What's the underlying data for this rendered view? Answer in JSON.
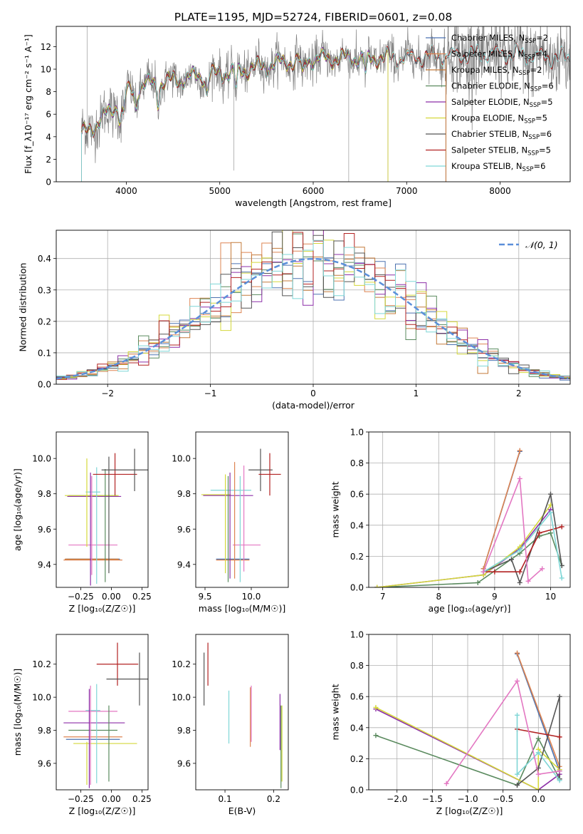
{
  "figure_title": "PLATE=1195, MJD=52724, FIBERID=0601, z=0.08",
  "colors": [
    "#1f77b4",
    "#ff7f0e",
    "#2ca02c",
    "#d62728",
    "#9467bd",
    "#8c564b",
    "#e377c2",
    "#7f7f7f",
    "#bcbd22",
    "#17becf"
  ],
  "chart_data": [
    {
      "id": "spectrum",
      "type": "line",
      "xlabel": "wavelength [Angstrom, rest frame]",
      "ylabel": "Flux [f_λ10⁻¹⁷ erg cm⁻² s⁻¹ A⁻¹]",
      "xlim": [
        3250,
        8750
      ],
      "ylim": [
        0,
        13.8
      ],
      "xticks": [
        4000,
        5000,
        6000,
        7000,
        8000
      ],
      "yticks": [
        0,
        2,
        4,
        6,
        8,
        10,
        12
      ],
      "legend": "upper right",
      "data_color": "#808080",
      "series": [
        {
          "name": "Chabrier MILES, N_SSP=2",
          "label": "Chabrier MILES, N",
          "sub": "SSP",
          "suffix": "=2",
          "color": "#4c72b0",
          "x_end": 7420
        },
        {
          "name": "Salpeter MILES, N_SSP=4",
          "label": "Salpeter MILES, N",
          "sub": "SSP",
          "suffix": "=4",
          "color": "#dd8452",
          "x_end": 7420
        },
        {
          "name": "Kroupa MILES, N_SSP=2",
          "label": "Kroupa MILES, N",
          "sub": "SSP",
          "suffix": "=2",
          "color": "#c47a3a",
          "x_end": 7420
        },
        {
          "name": "Chabrier ELODIE, N_SSP=6",
          "label": "Chabrier ELODIE, N",
          "sub": "SSP",
          "suffix": "=6",
          "color": "#5a8a5e",
          "x_end": 6800
        },
        {
          "name": "Salpeter ELODIE, N_SSP=5",
          "label": "Salpeter ELODIE, N",
          "sub": "SSP",
          "suffix": "=5",
          "color": "#8c2fa8",
          "x_end": 6800
        },
        {
          "name": "Kroupa ELODIE, N_SSP=5",
          "label": "Kroupa ELODIE, N",
          "sub": "SSP",
          "suffix": "=5",
          "color": "#d4d83a",
          "x_end": 6800
        },
        {
          "name": "Chabrier STELIB, N_SSP=6",
          "label": "Chabrier STELIB, N",
          "sub": "SSP",
          "suffix": "=6",
          "color": "#555555",
          "x_end": 8750
        },
        {
          "name": "Salpeter STELIB, N_SSP=5",
          "label": "Salpeter STELIB, N",
          "sub": "SSP",
          "suffix": "=5",
          "color": "#b22222",
          "x_end": 8750
        },
        {
          "name": "Kroupa STELIB, N_SSP=6",
          "label": "Kroupa STELIB, N",
          "sub": "SSP",
          "suffix": "=6",
          "color": "#7fd6d6",
          "x_end": 8750
        }
      ],
      "continuum": {
        "x": [
          3500,
          3700,
          3900,
          4000,
          4200,
          4500,
          4800,
          5000,
          5300,
          5600,
          6000,
          6400,
          7000,
          7400,
          8000,
          8600
        ],
        "y": [
          4.0,
          5.3,
          6.8,
          7.9,
          8.6,
          9.0,
          9.4,
          9.6,
          10.0,
          10.5,
          10.9,
          11.0,
          11.0,
          11.2,
          11.4,
          11.0
        ]
      }
    },
    {
      "id": "residuals",
      "type": "histogram",
      "xlabel": "(data-model)/error",
      "ylabel": "Normed distribution",
      "xlim": [
        -2.5,
        2.5
      ],
      "ylim": [
        0,
        0.49
      ],
      "xticks": [
        -2,
        -1,
        0,
        1,
        2
      ],
      "yticks": [
        0.0,
        0.1,
        0.2,
        0.3,
        0.4
      ],
      "grid": true,
      "legend": "upper right",
      "gaussian_label": "𝒩(0, 1)",
      "gaussian_color": "#5b8fd9",
      "bin_width": 0.1
    },
    {
      "id": "age_vs_Z",
      "type": "errorbar",
      "xlabel": "Z [log₁₀(Z/Z☉)]",
      "ylabel": "age  [log₁₀(age/yr)]",
      "xlim": [
        -0.45,
        0.3
      ],
      "ylim": [
        9.27,
        10.15
      ],
      "xticks": [
        -0.25,
        0.0,
        0.25
      ],
      "yticks": [
        9.4,
        9.6,
        9.8,
        10.0
      ],
      "points": [
        {
          "x": -0.15,
          "xerr": 0.22,
          "y": 9.43,
          "yerr": 0.0,
          "color": "#4c72b0"
        },
        {
          "x": -0.15,
          "xerr": 0.24,
          "y": 9.425,
          "yerr": 0.0,
          "color": "#dd8452"
        },
        {
          "x": -0.16,
          "xerr": 0.22,
          "y": 9.43,
          "yerr": 0.0,
          "color": "#c47a3a"
        },
        {
          "x": -0.15,
          "xerr": 0.2,
          "y": 9.79,
          "yerr": 0.0,
          "color": "#5a8a5e"
        },
        {
          "x": -0.14,
          "xerr": 0.22,
          "y": 9.785,
          "yerr": 0.0,
          "color": "#8c2fa8"
        },
        {
          "x": -0.16,
          "xerr": 0.22,
          "y": 9.79,
          "yerr": 0.0,
          "color": "#d4d83a"
        },
        {
          "x": -0.15,
          "xerr": 0.06,
          "y": 9.81,
          "yerr": 0.0,
          "color": "#7fd6d6"
        },
        {
          "x": -0.15,
          "xerr": 0.2,
          "y": 9.51,
          "yerr": 0.0,
          "color": "#e377c2"
        },
        {
          "x": -0.2,
          "xerr": 0.0,
          "y": 9.75,
          "yerr": 0.25,
          "color": "#d4d83a"
        },
        {
          "x": -0.17,
          "xerr": 0.0,
          "y": 9.6,
          "yerr": 0.32,
          "color": "#8c2fa8"
        },
        {
          "x": -0.16,
          "xerr": 0.0,
          "y": 9.62,
          "yerr": 0.28,
          "color": "#e377c2"
        },
        {
          "x": -0.12,
          "xerr": 0.0,
          "y": 9.62,
          "yerr": 0.33,
          "color": "#7fd6d6"
        },
        {
          "x": -0.05,
          "xerr": 0.0,
          "y": 9.62,
          "yerr": 0.32,
          "color": "#5a8a5e"
        },
        {
          "x": -0.02,
          "xerr": 0.0,
          "y": 9.68,
          "yerr": 0.33,
          "color": "#555555"
        },
        {
          "x": 0.03,
          "xerr": 0.18,
          "y": 9.91,
          "yerr": 0.12,
          "color": "#b22222"
        },
        {
          "x": 0.19,
          "xerr": 0.27,
          "y": 9.935,
          "yerr": 0.12,
          "color": "#555555"
        }
      ]
    },
    {
      "id": "age_vs_mass",
      "type": "errorbar",
      "xlabel": "mass [log₁₀(M/M☉)]",
      "ylabel": "",
      "xlim": [
        9.4,
        10.4
      ],
      "ylim": [
        9.27,
        10.15
      ],
      "xticks": [
        9.5,
        10.0
      ],
      "yticks": [
        9.4,
        9.6,
        9.8,
        10.0
      ],
      "points": [
        {
          "x": 9.8,
          "xerr": 0.18,
          "y": 9.43,
          "yerr": 0.0,
          "color": "#4c72b0"
        },
        {
          "x": 9.8,
          "xerr": 0.18,
          "y": 9.425,
          "yerr": 0.0,
          "color": "#dd8452"
        },
        {
          "x": 9.62,
          "xerr": 0.16,
          "y": 9.795,
          "yerr": 0.0,
          "color": "#d4d83a"
        },
        {
          "x": 9.75,
          "xerr": 0.27,
          "y": 9.79,
          "yerr": 0.0,
          "color": "#8c2fa8"
        },
        {
          "x": 9.78,
          "xerr": 0.22,
          "y": 9.82,
          "yerr": 0.0,
          "color": "#7fd6d6"
        },
        {
          "x": 9.95,
          "xerr": 0.15,
          "y": 9.51,
          "yerr": 0.0,
          "color": "#e377c2"
        },
        {
          "x": 9.72,
          "xerr": 0.0,
          "y": 9.63,
          "yerr": 0.28,
          "color": "#d4d83a"
        },
        {
          "x": 9.75,
          "xerr": 0.0,
          "y": 9.6,
          "yerr": 0.3,
          "color": "#5a8a5e"
        },
        {
          "x": 9.77,
          "xerr": 0.0,
          "y": 9.62,
          "yerr": 0.3,
          "color": "#8c2fa8"
        },
        {
          "x": 9.82,
          "xerr": 0.0,
          "y": 9.65,
          "yerr": 0.33,
          "color": "#dd8452"
        },
        {
          "x": 9.88,
          "xerr": 0.0,
          "y": 9.6,
          "yerr": 0.3,
          "color": "#7fd6d6"
        },
        {
          "x": 9.92,
          "xerr": 0.0,
          "y": 9.66,
          "yerr": 0.3,
          "color": "#e377c2"
        },
        {
          "x": 10.1,
          "xerr": 0.13,
          "y": 9.935,
          "yerr": 0.12,
          "color": "#555555"
        },
        {
          "x": 10.2,
          "xerr": 0.12,
          "y": 9.91,
          "yerr": 0.12,
          "color": "#b22222"
        }
      ]
    },
    {
      "id": "massweight_vs_age",
      "type": "line",
      "xlabel": "age  [log₁₀(age/yr)]",
      "ylabel": "mass weight",
      "xlim": [
        6.75,
        10.35
      ],
      "ylim": [
        0,
        1.0
      ],
      "xticks": [
        7,
        8,
        9,
        10
      ],
      "yticks": [
        0.0,
        0.2,
        0.4,
        0.6,
        0.8,
        1.0
      ],
      "grid": true,
      "series": [
        {
          "color": "#4c72b0",
          "x": [
            8.8,
            9.45
          ],
          "y": [
            0.12,
            0.875
          ]
        },
        {
          "color": "#dd8452",
          "x": [
            8.8,
            9.45
          ],
          "y": [
            0.12,
            0.88
          ]
        },
        {
          "color": "#5a8a5e",
          "x": [
            6.9,
            8.7,
            9.45,
            9.8,
            10.0,
            10.2
          ],
          "y": [
            0.0,
            0.03,
            0.22,
            0.33,
            0.35,
            0.14
          ]
        },
        {
          "color": "#8c2fa8",
          "x": [
            6.9,
            8.8,
            9.45,
            10.0
          ],
          "y": [
            0.0,
            0.08,
            0.25,
            0.5
          ]
        },
        {
          "color": "#d4d83a",
          "x": [
            6.9,
            8.8,
            9.45,
            10.0
          ],
          "y": [
            0.0,
            0.08,
            0.26,
            0.53
          ]
        },
        {
          "color": "#555555",
          "x": [
            8.8,
            9.3,
            9.45,
            10.0,
            10.2
          ],
          "y": [
            0.1,
            0.18,
            0.03,
            0.6,
            0.14
          ]
        },
        {
          "color": "#b22222",
          "x": [
            8.8,
            9.0,
            9.45,
            9.8,
            10.2
          ],
          "y": [
            0.1,
            0.1,
            0.1,
            0.35,
            0.39
          ]
        },
        {
          "color": "#7fd6d6",
          "x": [
            8.8,
            9.45,
            10.0,
            10.2
          ],
          "y": [
            0.1,
            0.24,
            0.48,
            0.06
          ]
        },
        {
          "color": "#e377c2",
          "x": [
            8.8,
            9.45,
            9.6,
            9.85
          ],
          "y": [
            0.1,
            0.7,
            0.04,
            0.12
          ]
        }
      ]
    },
    {
      "id": "mass_vs_Z",
      "type": "errorbar",
      "xlabel": "Z [log₁₀(Z/Z☉)]",
      "ylabel": "mass [log₁₀(M/M☉)]",
      "xlim": [
        -0.45,
        0.3
      ],
      "ylim": [
        9.44,
        10.38
      ],
      "xticks": [
        -0.25,
        0.0,
        0.25
      ],
      "yticks": [
        9.6,
        9.8,
        10.0,
        10.2
      ],
      "points": [
        {
          "x": -0.15,
          "xerr": 0.22,
          "y": 9.745,
          "yerr": 0.0,
          "color": "#4c72b0"
        },
        {
          "x": -0.15,
          "xerr": 0.24,
          "y": 9.76,
          "yerr": 0.0,
          "color": "#dd8452"
        },
        {
          "x": -0.14,
          "xerr": 0.25,
          "y": 9.845,
          "yerr": 0.0,
          "color": "#8c2fa8"
        },
        {
          "x": -0.15,
          "xerr": 0.2,
          "y": 9.8,
          "yerr": 0.0,
          "color": "#5a8a5e"
        },
        {
          "x": -0.05,
          "xerr": 0.26,
          "y": 9.72,
          "yerr": 0.0,
          "color": "#d4d83a"
        },
        {
          "x": -0.15,
          "xerr": 0.2,
          "y": 9.915,
          "yerr": 0.0,
          "color": "#e377c2"
        },
        {
          "x": -0.15,
          "xerr": 0.06,
          "y": 9.92,
          "yerr": 0.0,
          "color": "#7fd6d6"
        },
        {
          "x": -0.2,
          "xerr": 0.0,
          "y": 9.6,
          "yerr": 0.13,
          "color": "#d4d83a"
        },
        {
          "x": -0.18,
          "xerr": 0.0,
          "y": 9.75,
          "yerr": 0.3,
          "color": "#8c2fa8"
        },
        {
          "x": -0.17,
          "xerr": 0.0,
          "y": 9.77,
          "yerr": 0.3,
          "color": "#e377c2"
        },
        {
          "x": -0.12,
          "xerr": 0.0,
          "y": 9.78,
          "yerr": 0.3,
          "color": "#7fd6d6"
        },
        {
          "x": -0.02,
          "xerr": 0.0,
          "y": 9.72,
          "yerr": 0.23,
          "color": "#5a8a5e"
        },
        {
          "x": 0.05,
          "xerr": 0.17,
          "y": 10.2,
          "yerr": 0.13,
          "color": "#b22222"
        },
        {
          "x": 0.23,
          "xerr": 0.27,
          "y": 10.11,
          "yerr": 0.16,
          "color": "#555555"
        }
      ]
    },
    {
      "id": "mass_vs_EBV",
      "type": "errorbar",
      "xlabel": "E(B-V)",
      "ylabel": "",
      "xlim": [
        0.04,
        0.23
      ],
      "ylim": [
        9.44,
        10.38
      ],
      "xticks": [
        0.1,
        0.2
      ],
      "yticks": [
        9.6,
        9.8,
        10.0,
        10.2
      ],
      "points": [
        {
          "x": 0.057,
          "xerr": 0.0,
          "y": 10.11,
          "yerr": 0.16,
          "color": "#555555"
        },
        {
          "x": 0.065,
          "xerr": 0.0,
          "y": 10.2,
          "yerr": 0.13,
          "color": "#b22222"
        },
        {
          "x": 0.108,
          "xerr": 0.0,
          "y": 9.88,
          "yerr": 0.16,
          "color": "#7fd6d6"
        },
        {
          "x": 0.152,
          "xerr": 0.0,
          "y": 9.88,
          "yerr": 0.18,
          "color": "#dd8452"
        },
        {
          "x": 0.154,
          "xerr": 0.0,
          "y": 9.9,
          "yerr": 0.17,
          "color": "#e377c2"
        },
        {
          "x": 0.213,
          "xerr": 0.0,
          "y": 9.85,
          "yerr": 0.17,
          "color": "#8c2fa8"
        },
        {
          "x": 0.215,
          "xerr": 0.0,
          "y": 9.7,
          "yerr": 0.25,
          "color": "#5a8a5e"
        },
        {
          "x": 0.217,
          "xerr": 0.0,
          "y": 9.72,
          "yerr": 0.23,
          "color": "#d4d83a"
        }
      ]
    },
    {
      "id": "massweight_vs_Z",
      "type": "line",
      "xlabel": "Z [log₁₀(Z/Z☉)]",
      "ylabel": "mass weight",
      "xlim": [
        -2.4,
        0.45
      ],
      "ylim": [
        0,
        1.0
      ],
      "xticks": [
        -2.0,
        -1.5,
        -1.0,
        -0.5,
        0.0
      ],
      "yticks": [
        0.0,
        0.2,
        0.4,
        0.6,
        0.8,
        1.0
      ],
      "grid": true,
      "series": [
        {
          "color": "#4c72b0",
          "x": [
            -0.3,
            0.3
          ],
          "y": [
            0.875,
            0.12
          ]
        },
        {
          "color": "#dd8452",
          "x": [
            -0.3,
            0.3
          ],
          "y": [
            0.88,
            0.15
          ]
        },
        {
          "color": "#5a8a5e",
          "x": [
            -2.3,
            -0.3,
            0.0,
            0.3,
            0.3
          ],
          "y": [
            0.35,
            0.03,
            0.33,
            0.07,
            0.13
          ]
        },
        {
          "color": "#8c2fa8",
          "x": [
            -2.3,
            0.0,
            0.3
          ],
          "y": [
            0.52,
            0.0,
            0.1
          ]
        },
        {
          "color": "#d4d83a",
          "x": [
            -2.3,
            0.0,
            0.0,
            0.3
          ],
          "y": [
            0.53,
            0.0,
            0.26,
            0.13
          ]
        },
        {
          "color": "#555555",
          "x": [
            -0.3,
            0.0,
            0.3,
            0.3
          ],
          "y": [
            0.03,
            0.14,
            0.6,
            0.07
          ]
        },
        {
          "color": "#b22222",
          "x": [
            -0.3,
            0.3
          ],
          "y": [
            0.39,
            0.34
          ]
        },
        {
          "color": "#7fd6d6",
          "x": [
            -0.3,
            -0.3,
            0.0,
            0.3
          ],
          "y": [
            0.48,
            0.1,
            0.24,
            0.06
          ]
        },
        {
          "color": "#e377c2",
          "x": [
            -1.3,
            -0.3,
            0.0,
            0.3
          ],
          "y": [
            0.04,
            0.7,
            0.1,
            0.12
          ]
        }
      ]
    }
  ]
}
